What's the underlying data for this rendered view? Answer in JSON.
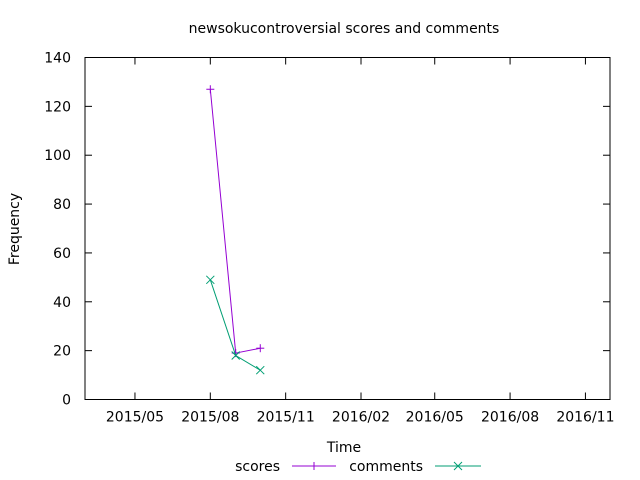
{
  "chart_data": {
    "type": "line",
    "title": "newsokucontroversial scores and comments",
    "xlabel": "Time",
    "ylabel": "Frequency",
    "ylim": [
      0,
      140
    ],
    "xlim": [
      "2015-03-01",
      "2016-12-01"
    ],
    "yticks": [
      0,
      20,
      40,
      60,
      80,
      100,
      120,
      140
    ],
    "xticks": [
      {
        "label": "2015/05",
        "date": "2015-05-01"
      },
      {
        "label": "2015/08",
        "date": "2015-08-01"
      },
      {
        "label": "2015/11",
        "date": "2015-11-01"
      },
      {
        "label": "2016/02",
        "date": "2016-02-01"
      },
      {
        "label": "2016/05",
        "date": "2016-05-01"
      },
      {
        "label": "2016/08",
        "date": "2016-08-01"
      },
      {
        "label": "2016/11",
        "date": "2016-11-01"
      }
    ],
    "grid": false,
    "legend_position": "bottom",
    "series": [
      {
        "name": "scores",
        "color": "#9400d3",
        "marker": "plus",
        "x": [
          "2015-08-01",
          "2015-09-01",
          "2015-10-01"
        ],
        "values": [
          127,
          19,
          21
        ]
      },
      {
        "name": "comments",
        "color": "#009e73",
        "marker": "cross",
        "x": [
          "2015-08-01",
          "2015-09-01",
          "2015-10-01"
        ],
        "values": [
          49,
          18,
          12
        ]
      }
    ]
  }
}
